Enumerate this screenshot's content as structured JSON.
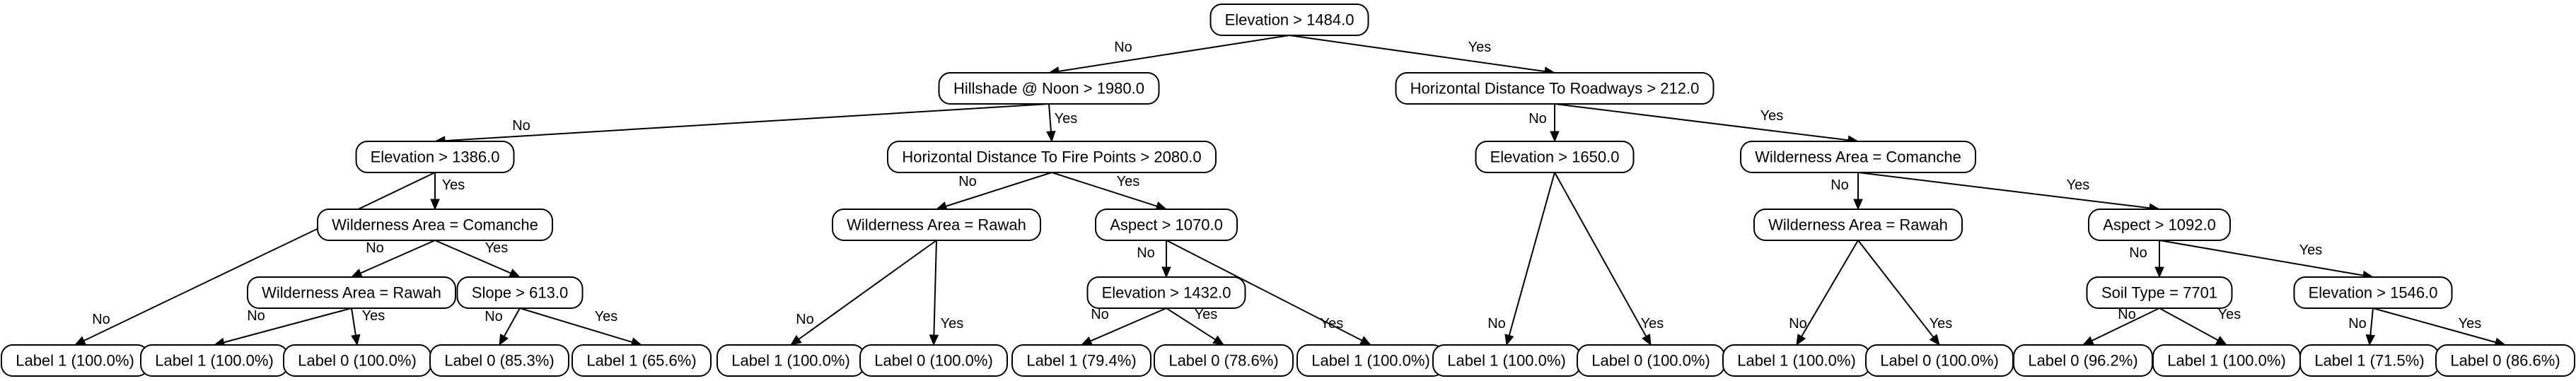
{
  "tree": {
    "nodes": [
      {
        "id": "n0",
        "label": "Elevation > 1484.0"
      },
      {
        "id": "n1",
        "label": "Hillshade @ Noon > 1980.0"
      },
      {
        "id": "n2",
        "label": "Horizontal Distance To Roadways > 212.0"
      },
      {
        "id": "n3",
        "label": "Elevation > 1386.0"
      },
      {
        "id": "n4",
        "label": "Horizontal Distance To Fire Points > 2080.0"
      },
      {
        "id": "n5",
        "label": "Elevation > 1650.0"
      },
      {
        "id": "n6",
        "label": "Wilderness Area = Comanche"
      },
      {
        "id": "n7",
        "label": "Wilderness Area = Comanche"
      },
      {
        "id": "n8",
        "label": "Wilderness Area = Rawah"
      },
      {
        "id": "n9",
        "label": "Aspect > 1070.0"
      },
      {
        "id": "n10",
        "label": "Wilderness Area = Rawah"
      },
      {
        "id": "n11",
        "label": "Aspect > 1092.0"
      },
      {
        "id": "n12",
        "label": "Wilderness Area = Rawah"
      },
      {
        "id": "n13",
        "label": "Slope > 613.0"
      },
      {
        "id": "n14",
        "label": "Elevation > 1432.0"
      },
      {
        "id": "n15",
        "label": "Soil Type = 7701"
      },
      {
        "id": "n16",
        "label": "Elevation > 1546.0"
      },
      {
        "id": "l0",
        "label": "Label 1 (100.0%)"
      },
      {
        "id": "l1",
        "label": "Label 1 (100.0%)"
      },
      {
        "id": "l2",
        "label": "Label 0 (100.0%)"
      },
      {
        "id": "l3",
        "label": "Label 0 (85.3%)"
      },
      {
        "id": "l4",
        "label": "Label 1 (65.6%)"
      },
      {
        "id": "l5",
        "label": "Label 1 (100.0%)"
      },
      {
        "id": "l6",
        "label": "Label 0 (100.0%)"
      },
      {
        "id": "l7",
        "label": "Label 1 (79.4%)"
      },
      {
        "id": "l8",
        "label": "Label 0 (78.6%)"
      },
      {
        "id": "l9",
        "label": "Label 1 (100.0%)"
      },
      {
        "id": "l10",
        "label": "Label 1 (100.0%)"
      },
      {
        "id": "l11",
        "label": "Label 0 (100.0%)"
      },
      {
        "id": "l12",
        "label": "Label 1 (100.0%)"
      },
      {
        "id": "l13",
        "label": "Label 0 (100.0%)"
      },
      {
        "id": "l14",
        "label": "Label 0 (96.2%)"
      },
      {
        "id": "l15",
        "label": "Label 1 (100.0%)"
      },
      {
        "id": "l16",
        "label": "Label 1 (71.5%)"
      },
      {
        "id": "l17",
        "label": "Label 0 (86.6%)"
      }
    ],
    "edges": [
      {
        "from": "n0",
        "to": "n1",
        "label": "No"
      },
      {
        "from": "n0",
        "to": "n2",
        "label": "Yes"
      },
      {
        "from": "n1",
        "to": "n3",
        "label": "No"
      },
      {
        "from": "n1",
        "to": "n4",
        "label": "Yes"
      },
      {
        "from": "n2",
        "to": "n5",
        "label": "No"
      },
      {
        "from": "n2",
        "to": "n6",
        "label": "Yes"
      },
      {
        "from": "n3",
        "to": "l0",
        "label": "No"
      },
      {
        "from": "n3",
        "to": "n7",
        "label": "Yes"
      },
      {
        "from": "n4",
        "to": "n8",
        "label": "No"
      },
      {
        "from": "n4",
        "to": "n9",
        "label": "Yes"
      },
      {
        "from": "n5",
        "to": "l10",
        "label": "No"
      },
      {
        "from": "n5",
        "to": "l11",
        "label": "Yes"
      },
      {
        "from": "n6",
        "to": "n10",
        "label": "No"
      },
      {
        "from": "n6",
        "to": "n11",
        "label": "Yes"
      },
      {
        "from": "n7",
        "to": "n12",
        "label": "No"
      },
      {
        "from": "n7",
        "to": "n13",
        "label": "Yes"
      },
      {
        "from": "n8",
        "to": "l5",
        "label": "No"
      },
      {
        "from": "n8",
        "to": "l6",
        "label": "Yes"
      },
      {
        "from": "n9",
        "to": "n14",
        "label": "No"
      },
      {
        "from": "n9",
        "to": "l9",
        "label": "Yes"
      },
      {
        "from": "n10",
        "to": "l12",
        "label": "No"
      },
      {
        "from": "n10",
        "to": "l13",
        "label": "Yes"
      },
      {
        "from": "n11",
        "to": "n15",
        "label": "No"
      },
      {
        "from": "n11",
        "to": "n16",
        "label": "Yes"
      },
      {
        "from": "n12",
        "to": "l1",
        "label": "No"
      },
      {
        "from": "n12",
        "to": "l2",
        "label": "Yes"
      },
      {
        "from": "n13",
        "to": "l3",
        "label": "No"
      },
      {
        "from": "n13",
        "to": "l4",
        "label": "Yes"
      },
      {
        "from": "n14",
        "to": "l7",
        "label": "No"
      },
      {
        "from": "n14",
        "to": "l8",
        "label": "Yes"
      },
      {
        "from": "n15",
        "to": "l14",
        "label": "No"
      },
      {
        "from": "n15",
        "to": "l15",
        "label": "Yes"
      },
      {
        "from": "n16",
        "to": "l16",
        "label": "No"
      },
      {
        "from": "n16",
        "to": "l17",
        "label": "Yes"
      }
    ]
  }
}
